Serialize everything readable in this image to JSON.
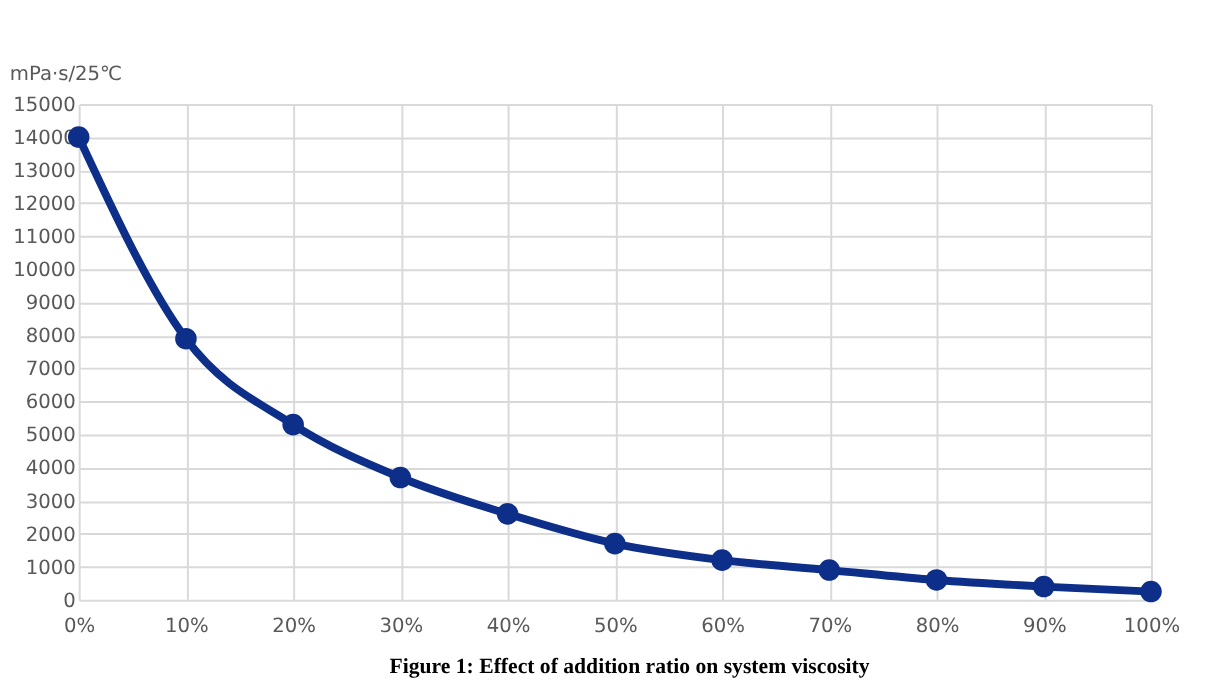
{
  "chart_data": {
    "type": "line",
    "ylabel": "mPa·s/25℃",
    "categories": [
      "0%",
      "10%",
      "20%",
      "30%",
      "40%",
      "50%",
      "60%",
      "70%",
      "80%",
      "90%",
      "100%"
    ],
    "series": [
      {
        "color": "#0d2f8a",
        "values": [
          14000,
          7900,
          5300,
          3700,
          2600,
          1700,
          1200,
          900,
          600,
          400,
          250
        ]
      }
    ],
    "ylim": [
      0,
      15000
    ],
    "yticks": [
      0,
      1000,
      2000,
      3000,
      4000,
      5000,
      6000,
      7000,
      8000,
      9000,
      10000,
      11000,
      12000,
      13000,
      14000,
      15000
    ],
    "grid": true,
    "marker": "circle",
    "line_style": "solid",
    "legend": false,
    "annotations": [
      "Figure 1: Effect of addition ratio on system viscosity"
    ]
  }
}
